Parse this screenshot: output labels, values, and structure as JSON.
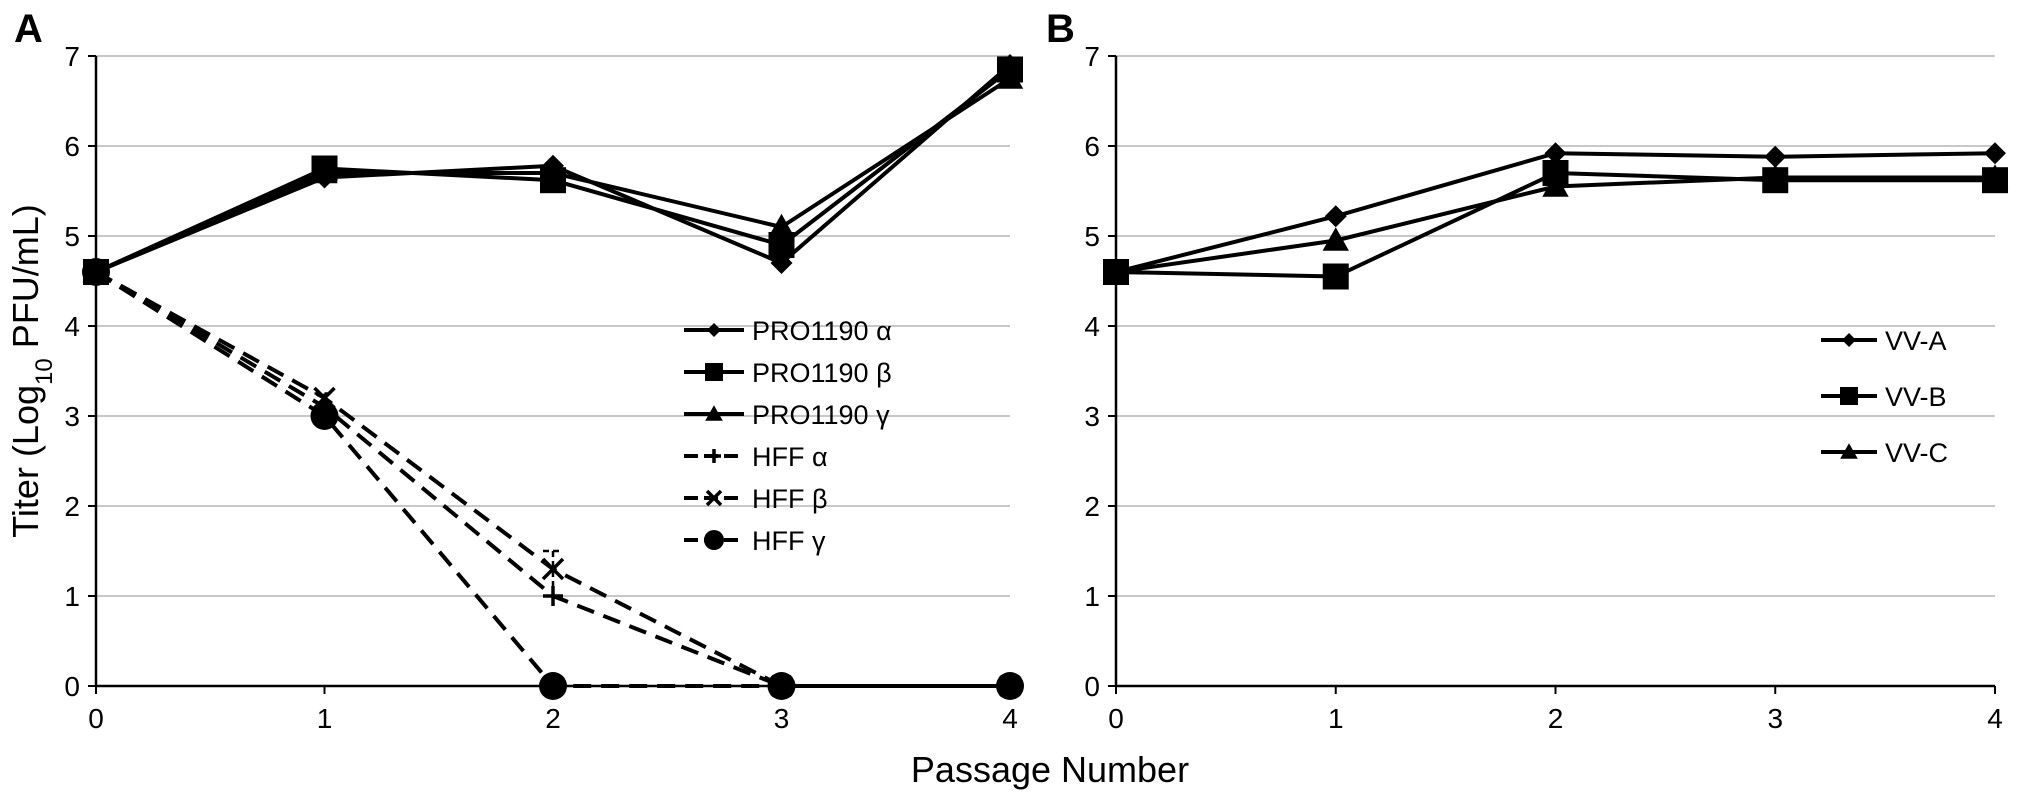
{
  "figure": {
    "shared_xlabel": "Passage Number"
  },
  "chart_data": [
    {
      "type": "line",
      "panel": "A",
      "ylabel_parts": [
        "Titer (Log",
        "10",
        " PFU/mL)"
      ],
      "x": [
        0,
        1,
        2,
        3,
        4
      ],
      "xlim": [
        0,
        4
      ],
      "ylim": [
        0,
        7
      ],
      "xticks": [
        "0",
        "1",
        "2",
        "3",
        "4"
      ],
      "yticks": [
        "0",
        "1",
        "2",
        "3",
        "4",
        "5",
        "6",
        "7"
      ],
      "grid": true,
      "legend_position": "right",
      "series": [
        {
          "name": "PRO1190 α",
          "values": [
            4.6,
            5.65,
            5.78,
            4.7,
            6.9
          ],
          "marker": "diamond",
          "dash": "solid"
        },
        {
          "name": "PRO1190 β",
          "values": [
            4.6,
            5.75,
            5.62,
            4.9,
            6.85
          ],
          "marker": "square",
          "dash": "solid"
        },
        {
          "name": "PRO1190 γ",
          "values": [
            4.6,
            5.7,
            5.7,
            5.1,
            6.75
          ],
          "marker": "triangle",
          "dash": "solid"
        },
        {
          "name": "HFF α",
          "values": [
            4.6,
            3.1,
            1.0,
            0.0,
            0.0
          ],
          "marker": "plus",
          "dash": "dashed"
        },
        {
          "name": "HFF β",
          "values": [
            4.6,
            3.2,
            1.3,
            0.0,
            0.0
          ],
          "marker": "cross",
          "dash": "dashed"
        },
        {
          "name": "HFF γ",
          "values": [
            4.6,
            3.0,
            0.0,
            0.0,
            0.0
          ],
          "marker": "circle",
          "dash": "dashed"
        }
      ],
      "error_bars": [
        {
          "x": 0,
          "y": 4.6,
          "err": 0.1
        },
        {
          "x": 1,
          "y": 3.1,
          "err": 0.15
        },
        {
          "x": 2,
          "y": 1.25,
          "err": 0.25
        }
      ]
    },
    {
      "type": "line",
      "panel": "B",
      "x": [
        0,
        1,
        2,
        3,
        4
      ],
      "xlim": [
        0,
        4
      ],
      "ylim": [
        0,
        7
      ],
      "xticks": [
        "0",
        "1",
        "2",
        "3",
        "4"
      ],
      "yticks": [
        "0",
        "1",
        "2",
        "3",
        "4",
        "5",
        "6",
        "7"
      ],
      "grid": true,
      "legend_position": "right",
      "series": [
        {
          "name": "VV-A",
          "values": [
            4.6,
            5.22,
            5.92,
            5.88,
            5.92
          ],
          "marker": "diamond",
          "dash": "solid"
        },
        {
          "name": "VV-B",
          "values": [
            4.6,
            4.55,
            5.7,
            5.62,
            5.62
          ],
          "marker": "square",
          "dash": "solid"
        },
        {
          "name": "VV-C",
          "values": [
            4.6,
            4.95,
            5.55,
            5.65,
            5.65
          ],
          "marker": "triangle",
          "dash": "solid"
        }
      ]
    }
  ]
}
